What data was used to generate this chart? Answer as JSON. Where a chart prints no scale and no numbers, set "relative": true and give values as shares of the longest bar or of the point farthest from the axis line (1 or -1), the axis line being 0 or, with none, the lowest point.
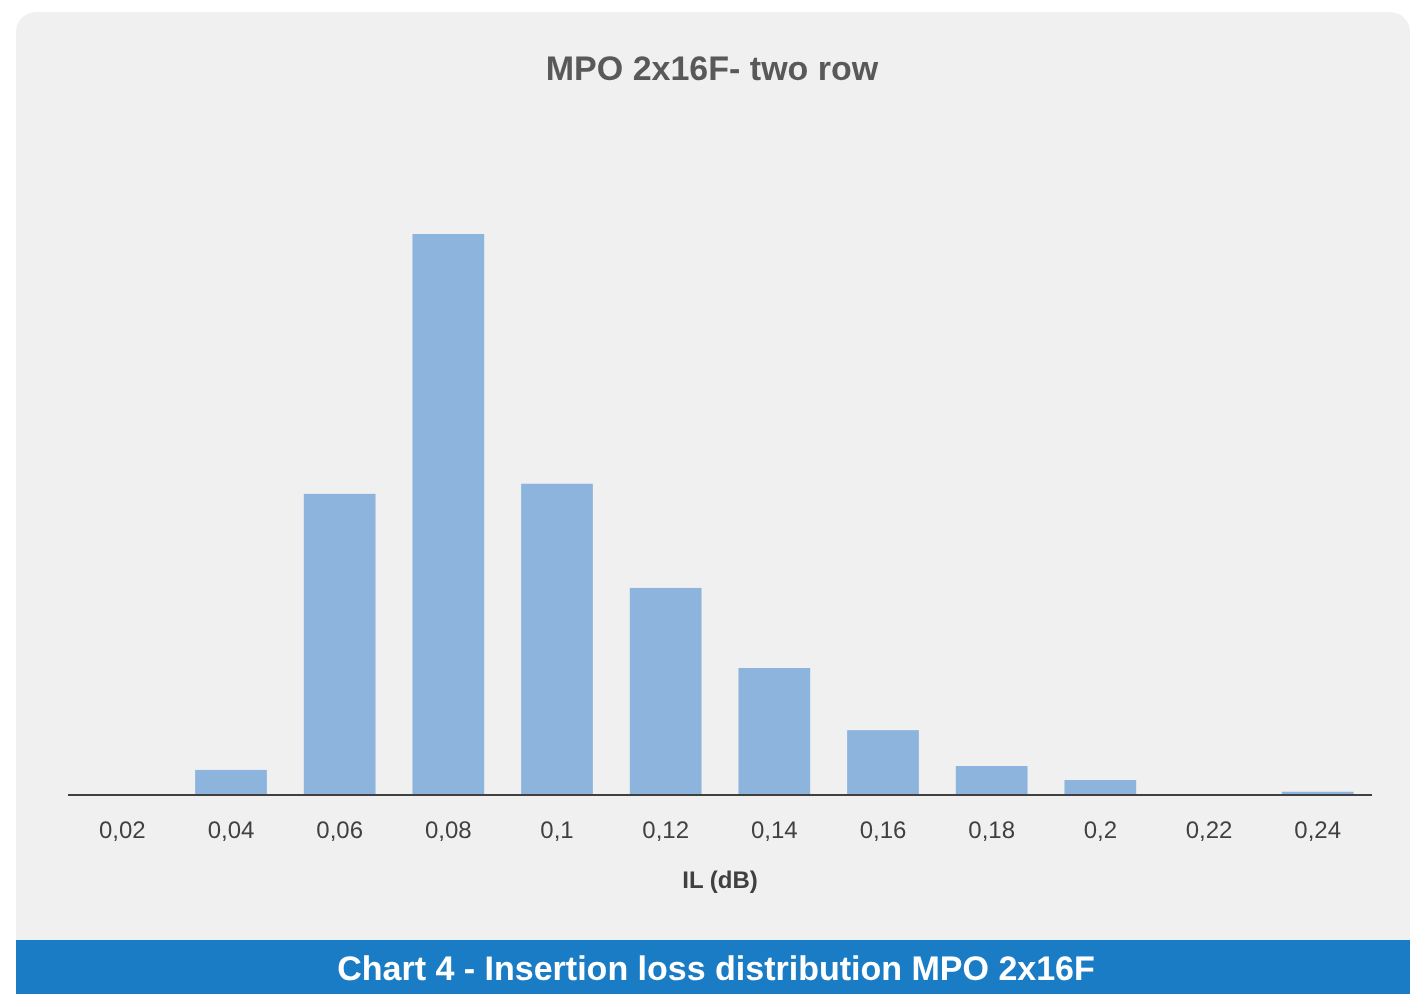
{
  "chart_data": {
    "type": "bar",
    "title": "MPO 2x16F- two row",
    "xlabel": "IL (dB)",
    "relative": true,
    "categories": [
      "0,02",
      "0,04",
      "0,06",
      "0,08",
      "0,1",
      "0,12",
      "0,14",
      "0,16",
      "0,18",
      "0,2",
      "0,22",
      "0,24"
    ],
    "values": [
      0,
      0.043,
      0.536,
      1,
      0.554,
      0.368,
      0.225,
      0.114,
      0.05,
      0.025,
      0,
      0.004
    ],
    "color": "#8cb4dc",
    "grid": false,
    "annotations": [
      "Chart 4 - Insertion loss distribution MPO 2x16F"
    ]
  }
}
